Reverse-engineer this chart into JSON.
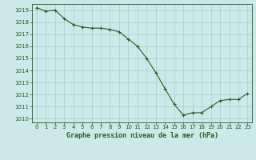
{
  "x": [
    0,
    1,
    2,
    3,
    4,
    5,
    6,
    7,
    8,
    9,
    10,
    11,
    12,
    13,
    14,
    15,
    16,
    17,
    18,
    19,
    20,
    21,
    22,
    23
  ],
  "y": [
    1019.2,
    1018.9,
    1019.0,
    1018.3,
    1017.8,
    1017.6,
    1017.5,
    1017.5,
    1017.4,
    1017.2,
    1016.6,
    1016.0,
    1015.0,
    1013.8,
    1012.5,
    1011.2,
    1010.3,
    1010.5,
    1010.5,
    1011.0,
    1011.5,
    1011.6,
    1011.6,
    1012.1
  ],
  "xlim": [
    -0.5,
    23.5
  ],
  "ylim": [
    1009.7,
    1019.5
  ],
  "yticks": [
    1010,
    1011,
    1012,
    1013,
    1014,
    1015,
    1016,
    1017,
    1018,
    1019
  ],
  "xticks": [
    0,
    1,
    2,
    3,
    4,
    5,
    6,
    7,
    8,
    9,
    10,
    11,
    12,
    13,
    14,
    15,
    16,
    17,
    18,
    19,
    20,
    21,
    22,
    23
  ],
  "xlabel": "Graphe pression niveau de la mer (hPa)",
  "line_color": "#2d5a27",
  "marker_color": "#2d5a27",
  "bg_color": "#cce8e8",
  "grid_color": "#aacccc",
  "tick_label_color": "#2d5a27",
  "xlabel_color": "#2d5a27"
}
